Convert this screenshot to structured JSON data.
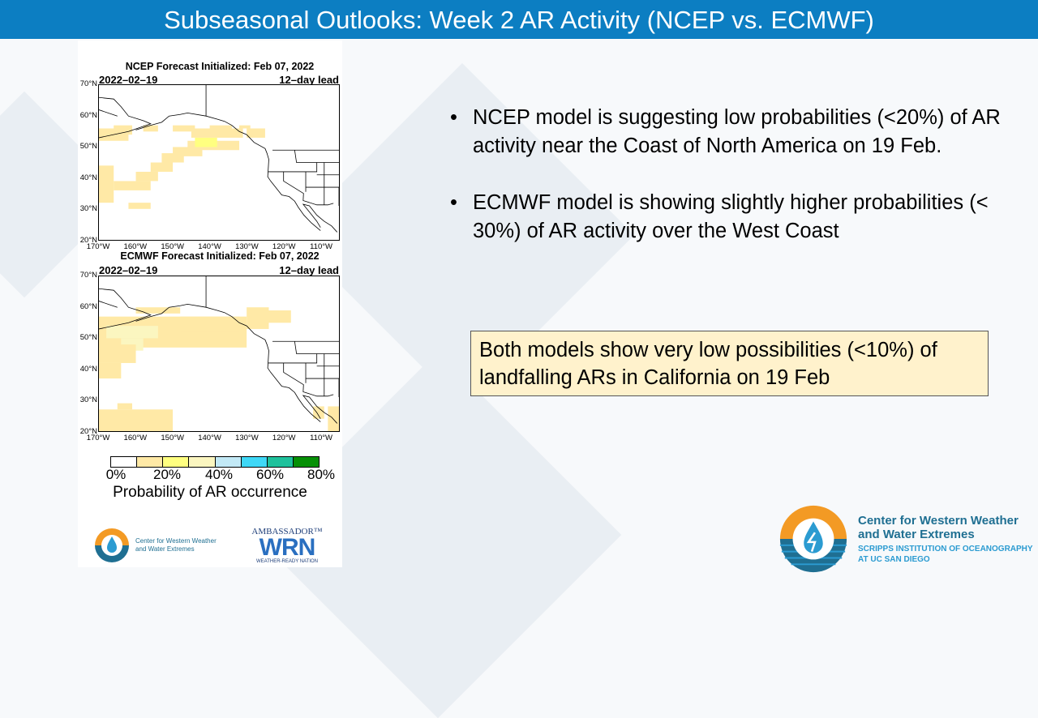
{
  "header": {
    "title": "Subseasonal Outlooks: Week 2 AR Activity (NCEP vs. ECMWF)"
  },
  "maps": [
    {
      "title": "NCEP Forecast Initialized: Feb 07, 2022",
      "date": "2022–02–19",
      "lead": "12–day lead"
    },
    {
      "title": "ECMWF Forecast Initialized: Feb 07, 2022",
      "date": "2022–02–19",
      "lead": "12–day lead"
    }
  ],
  "lat_labels": [
    "70°N",
    "60°N",
    "50°N",
    "40°N",
    "30°N",
    "20°N"
  ],
  "lon_labels": [
    "170°W",
    "160°W",
    "150°W",
    "140°W",
    "130°W",
    "120°W",
    "110°W"
  ],
  "colorbar": {
    "colors": [
      "#ffffff",
      "#ffe9a6",
      "#ffff80",
      "#fbf6c0",
      "#c2e9f6",
      "#3fd8f7",
      "#1fc19c",
      "#069006"
    ],
    "ticks": [
      "0%",
      "20%",
      "40%",
      "60%",
      "80%"
    ],
    "caption": "Probability of AR occurrence"
  },
  "bullets": [
    "NCEP model is suggesting low probabilities (<20%) of AR activity near the Coast of North America on 19 Feb.",
    "ECMWF model is showing slightly higher probabilities (< 30%) of AR activity over the West Coast"
  ],
  "note": "Both models show very low possibilities (<10%) of landfalling ARs in California on 19 Feb",
  "logos": {
    "cw3e_line1": "Center for Western Weather",
    "cw3e_line2": "and Water Extremes",
    "cw3e_sub1": "SCRIPPS INSTITUTION OF OCEANOGRAPHY",
    "cw3e_sub2": "AT UC SAN DIEGO",
    "wrn_top": "AMBASSADOR™",
    "wrn_mid": "WRN",
    "wrn_bottom": "WEATHER-READY NATION"
  }
}
